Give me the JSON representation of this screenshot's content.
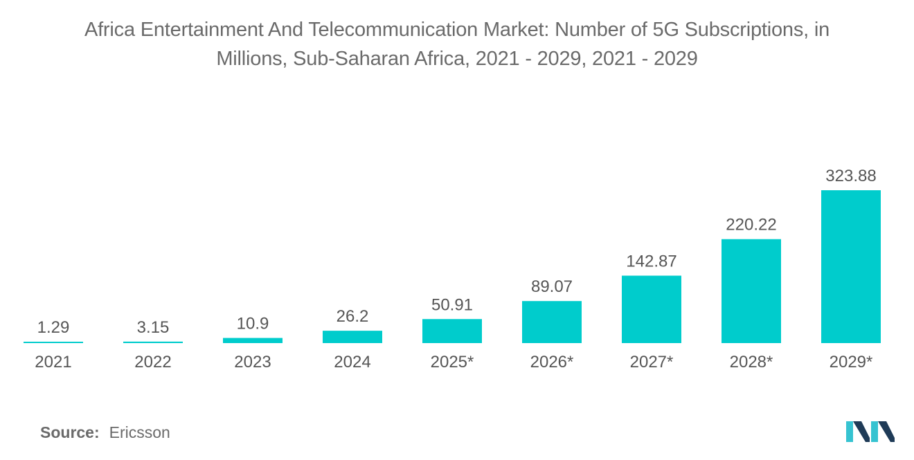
{
  "title": {
    "line1": "Africa Entertainment And Telecommunication Market: Number of 5G Subscriptions, in",
    "line2": "Millions, Sub-Saharan Africa, 2021 - 2029, 2021 - 2029"
  },
  "colors": {
    "bar": "#00CCCC",
    "text": "#555555",
    "title": "#6a6a6a",
    "logo_dark": "#1f3b57",
    "logo_light": "#36c3d1"
  },
  "chart_data": {
    "type": "bar",
    "title": "Africa Entertainment And Telecommunication Market: Number of 5G Subscriptions, in Millions, Sub-Saharan Africa, 2021 - 2029, 2021 - 2029",
    "categories": [
      "2021",
      "2022",
      "2023",
      "2024",
      "2025*",
      "2026*",
      "2027*",
      "2028*",
      "2029*"
    ],
    "values": [
      1.29,
      3.15,
      10.9,
      26.2,
      50.91,
      89.07,
      142.87,
      220.22,
      323.88
    ],
    "value_labels": [
      "1.29",
      "3.15",
      "10.9",
      "26.2",
      "50.91",
      "89.07",
      "142.87",
      "220.22",
      "323.88"
    ],
    "xlabel": "",
    "ylabel": "",
    "ylim": [
      0,
      323.88
    ],
    "grid": false,
    "legend": "none"
  },
  "source": {
    "label": "Source:",
    "value": "Ericsson"
  },
  "logo": {
    "icon": "mordor-intelligence-logo-icon"
  }
}
